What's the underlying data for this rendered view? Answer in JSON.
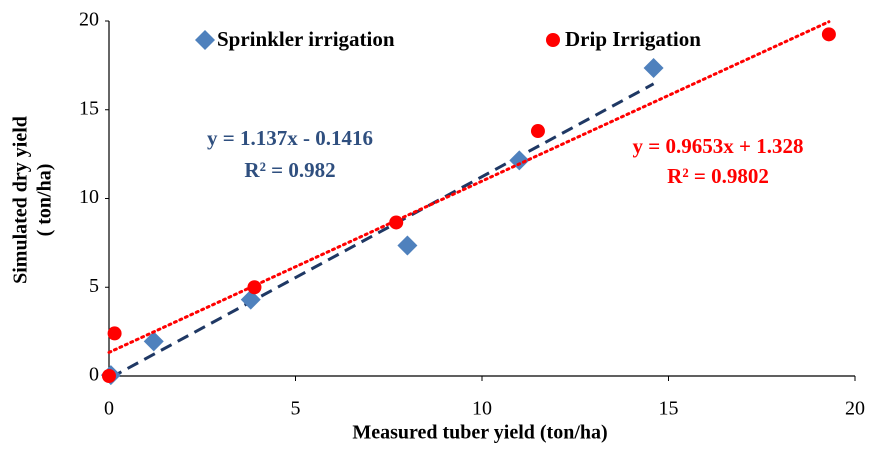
{
  "chart_data": {
    "type": "scatter",
    "x_label": "Measured tuber yield (ton/ha)",
    "y_label": [
      "Simulated dry  yield",
      "( ton/ha)"
    ],
    "xlim": [
      0,
      20
    ],
    "xticks": [
      0,
      5,
      10,
      15,
      20
    ],
    "ylim": [
      0,
      20
    ],
    "yticks": [
      0,
      5,
      10,
      15,
      20
    ],
    "legend": "top",
    "series": [
      {
        "name": "Sprinkler irrigation",
        "color": "#4f81bd",
        "marker": "diamond",
        "x": [
          0.05,
          1.2,
          3.8,
          8,
          11,
          14.6
        ],
        "values": [
          0.05,
          1.95,
          4.3,
          7.35,
          12.15,
          17.35
        ],
        "trendline": {
          "slope": 1.137,
          "intercept": -0.1416,
          "r2": 0.982,
          "color": "#1f3864",
          "style": "dashed",
          "equation_label": "y = 1.137x - 0.1416",
          "r2_label": "R² = 0.982",
          "label_color": "#2f4f7f"
        }
      },
      {
        "name": "Drip Irrigation",
        "color": "#ff0000",
        "marker": "circle",
        "x": [
          0,
          0.15,
          3.9,
          7.7,
          11.5,
          19.3
        ],
        "values": [
          0,
          2.4,
          5,
          8.65,
          13.8,
          19.25
        ],
        "trendline": {
          "slope": 0.9653,
          "intercept": 1.328,
          "r2": 0.9802,
          "color": "#ff0000",
          "style": "dotted",
          "equation_label": "y = 0.9653x + 1.328",
          "r2_label": "R² = 0.9802",
          "label_color": "#ff0000"
        }
      }
    ]
  }
}
